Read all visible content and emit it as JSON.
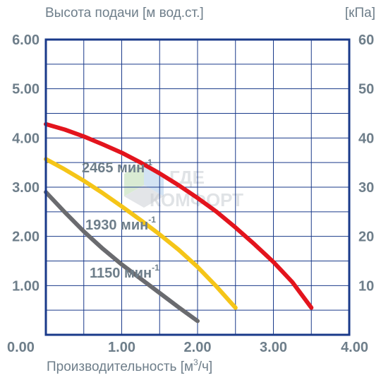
{
  "chart_data": {
    "type": "line",
    "y_title": "Высота подачи [м вод.ст.]",
    "y2_title": "[кПа]",
    "x_title_main": "Производительность [м",
    "x_title_sup": "3",
    "x_title_end": "/ч]",
    "xlim": [
      0,
      4
    ],
    "ylim": [
      0,
      6
    ],
    "y2lim": [
      0,
      60
    ],
    "grid": true,
    "x_ticks": [
      "0.00",
      "1.00",
      "2.00",
      "3.00",
      "4.00"
    ],
    "y_ticks": [
      "6.00",
      "5.00",
      "4.00",
      "3.00",
      "2.00",
      "1.00"
    ],
    "y2_ticks": [
      "60",
      "50",
      "40",
      "30",
      "20",
      "10"
    ],
    "series": [
      {
        "name": "2465 мин",
        "sup": "-1",
        "color": "#e3141d",
        "x": [
          0,
          0.25,
          0.5,
          0.75,
          1.0,
          1.25,
          1.5,
          1.75,
          2.0,
          2.25,
          2.5,
          2.75,
          3.0,
          3.25,
          3.5
        ],
        "y": [
          4.28,
          4.17,
          4.03,
          3.87,
          3.7,
          3.5,
          3.28,
          3.04,
          2.78,
          2.5,
          2.18,
          1.84,
          1.48,
          1.07,
          0.55
        ]
      },
      {
        "name": "1930 мин",
        "sup": "-1",
        "color": "#f5c518",
        "x": [
          0,
          0.25,
          0.5,
          0.75,
          1.0,
          1.25,
          1.5,
          1.75,
          2.0,
          2.25,
          2.5
        ],
        "y": [
          3.57,
          3.36,
          3.13,
          2.88,
          2.61,
          2.33,
          2.04,
          1.73,
          1.38,
          0.98,
          0.55
        ]
      },
      {
        "name": "1150 мин",
        "sup": "-1",
        "color": "#6a6b6f",
        "x": [
          0,
          0.25,
          0.5,
          0.75,
          1.0,
          1.25,
          1.5,
          1.75,
          2.0
        ],
        "y": [
          2.9,
          2.49,
          2.1,
          1.75,
          1.43,
          1.14,
          0.85,
          0.56,
          0.28
        ]
      }
    ]
  },
  "watermark": {
    "line1": "ГДЕ",
    "line2": "КОМФОРТ",
    "colors": {
      "grey": "#c8cdd2",
      "green": "#b5d9a8",
      "blue": "#a9c8e8"
    }
  },
  "colors": {
    "frame": "#1a3a8a",
    "grid": "#1a3a8a",
    "axis_text": "#6e7e8a"
  }
}
